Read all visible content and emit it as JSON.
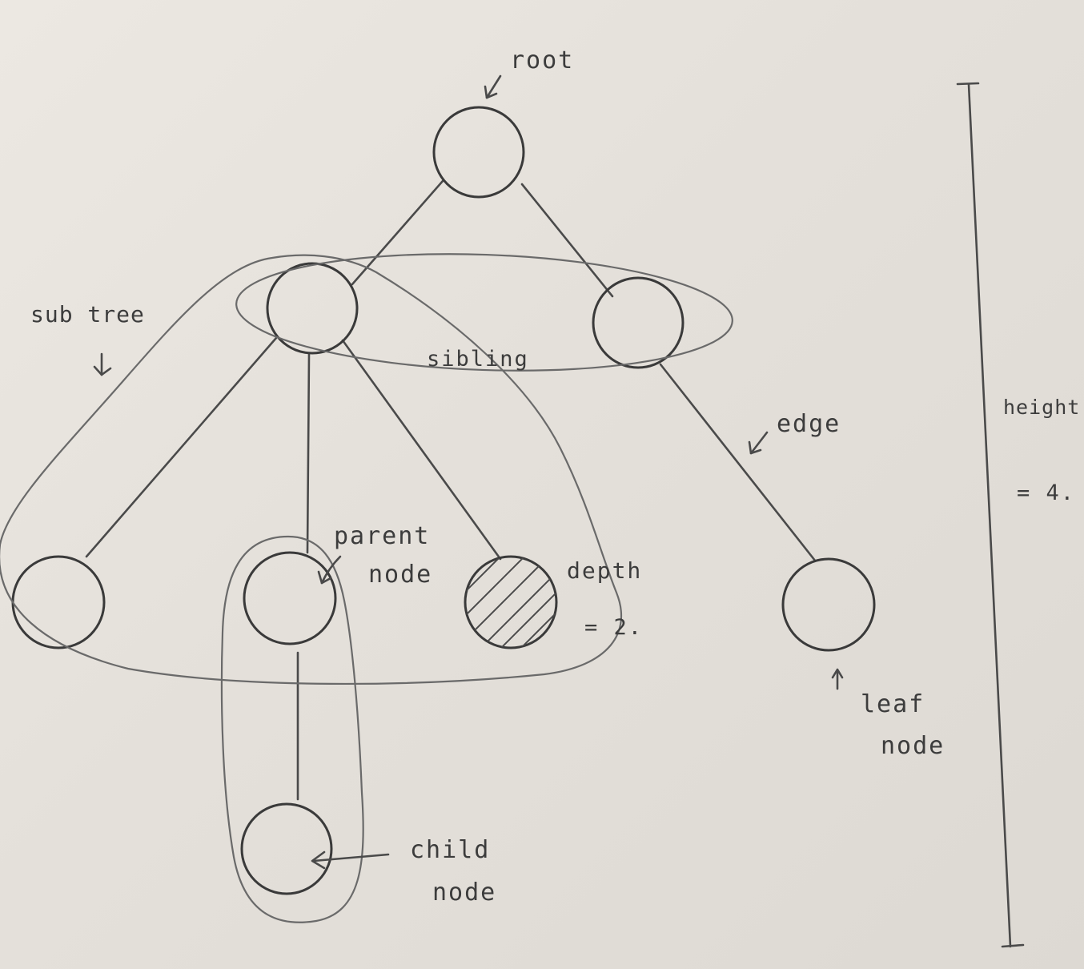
{
  "labels": {
    "root": "root",
    "subtree": "sub tree",
    "sibling": "sibling",
    "edge": "edge",
    "height": "height",
    "height_value": "= 4.",
    "parent_line1": "parent",
    "parent_line2": "node",
    "depth": "depth",
    "depth_value": "= 2.",
    "leaf_line1": "leaf",
    "leaf_line2": "node",
    "child_line1": "child",
    "child_line2": "node"
  },
  "colors": {
    "pencil": "#3a3a3a",
    "paper": "#e9e5df"
  }
}
